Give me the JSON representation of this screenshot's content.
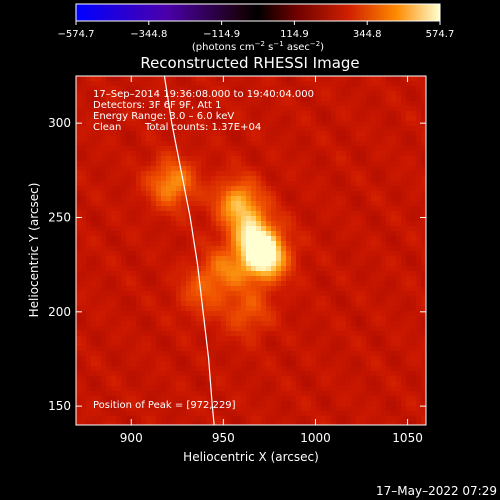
{
  "chart_data": {
    "type": "heatmap",
    "title": "Reconstructed RHESSI Image",
    "xlabel": "Heliocentric X (arcsec)",
    "ylabel": "Heliocentric Y (arcsec)",
    "xlim": [
      870,
      1060
    ],
    "ylim": [
      140,
      325
    ],
    "xticks": [
      900,
      950,
      1000,
      1050
    ],
    "yticks": [
      150,
      200,
      250,
      300
    ],
    "grid": false,
    "colorbar": {
      "min": -574.7,
      "max": 574.7,
      "tick_values": [
        -574.7,
        -344.8,
        -114.9,
        114.9,
        344.8,
        574.7
      ],
      "tick_labels": [
        "−574.7",
        "−344.8",
        "−114.9",
        "114.9",
        "344.8",
        "574.7"
      ],
      "label_pre": "(photons cm",
      "label_sup1": "−2",
      "label_mid": " s",
      "label_sup2": "−1",
      "label_mid2": " asec",
      "label_sup3": "−2",
      "label_post": ")",
      "colormap": "red-temperature"
    },
    "annotations": {
      "time": "17–Sep–2014 19:36:08.000 to 19:40:04.000",
      "detectors": "Detectors: 3F 6F 9F, Att 1",
      "energy": "Energy Range: 3.0 – 6.0 keV",
      "method": "Clean",
      "counts": "Total counts: 1.37E+04",
      "peak": "Position of Peak = [972,229]"
    },
    "sources": [
      {
        "x": 972,
        "y": 229,
        "amplitude": 1.0
      },
      {
        "x": 966,
        "y": 242,
        "amplitude": 0.55
      },
      {
        "x": 958,
        "y": 258,
        "amplitude": 0.62
      },
      {
        "x": 922,
        "y": 268,
        "amplitude": 0.58
      },
      {
        "x": 950,
        "y": 222,
        "amplitude": 0.38
      },
      {
        "x": 963,
        "y": 200,
        "amplitude": 0.35
      },
      {
        "x": 938,
        "y": 210,
        "amplitude": 0.3
      }
    ],
    "limb": [
      [
        918,
        325
      ],
      [
        922,
        300
      ],
      [
        927,
        275
      ],
      [
        932,
        250
      ],
      [
        936,
        225
      ],
      [
        939,
        200
      ],
      [
        942,
        175
      ],
      [
        944,
        150
      ],
      [
        945,
        140
      ]
    ],
    "limb_color": "#ffffff"
  },
  "footer": {
    "date": "17–May–2022 07:29"
  }
}
